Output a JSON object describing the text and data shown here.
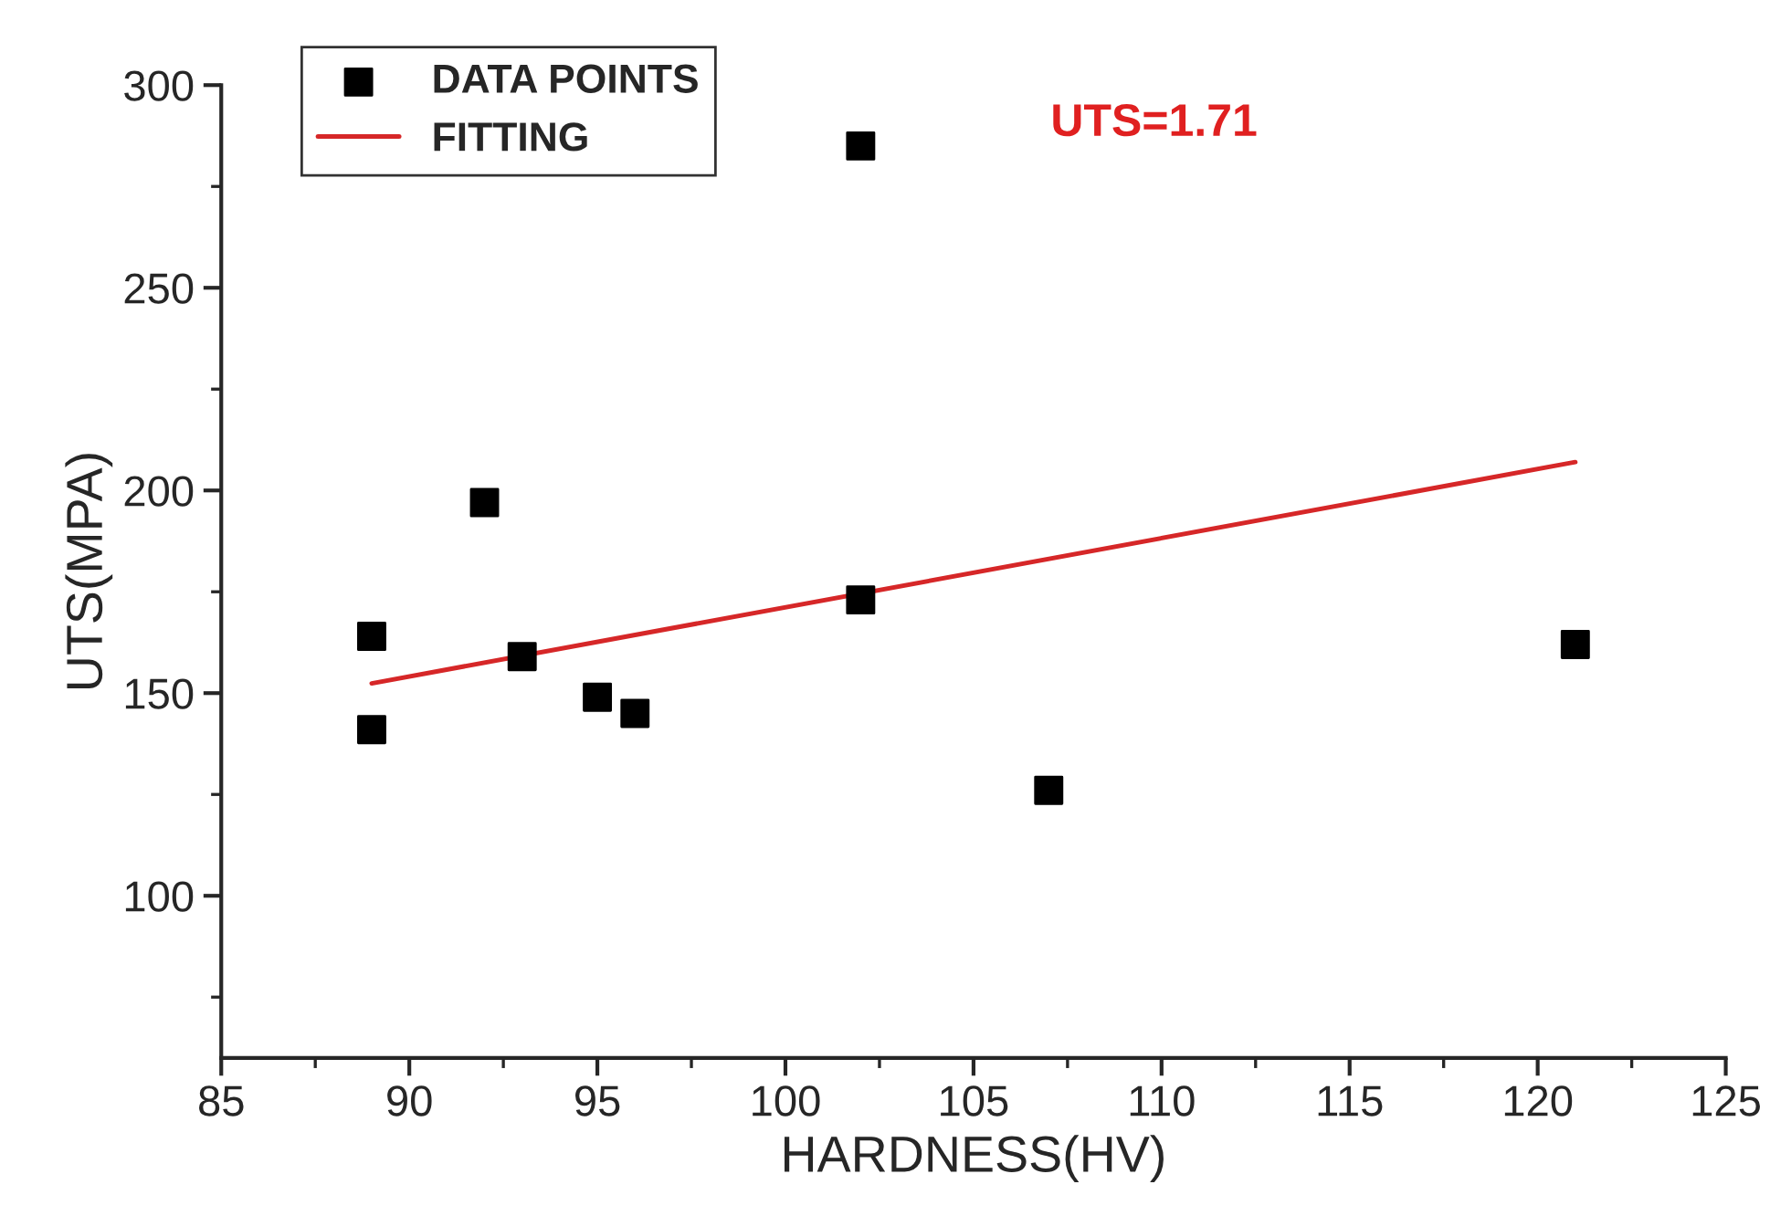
{
  "chart_data": {
    "type": "scatter",
    "xlabel": "HARDNESS(HV)",
    "ylabel": "UTS(MPA)",
    "xlim": [
      85,
      125
    ],
    "xticks": [
      85,
      90,
      95,
      100,
      105,
      110,
      115,
      120,
      125
    ],
    "ylim": [
      60,
      300
    ],
    "yticks": [
      100,
      150,
      200,
      250,
      300
    ],
    "series": [
      {
        "name": "DATA POINTS",
        "color": "#000000",
        "marker": "square",
        "x": [
          89,
          89,
          92,
          93,
          95,
          96,
          102,
          102,
          107,
          121
        ],
        "values": [
          141,
          164,
          197,
          159,
          149,
          145,
          285,
          173,
          126,
          162
        ]
      },
      {
        "name": "FITTING",
        "type": "line",
        "color": "#d62728",
        "marker": "none",
        "line_style": "solid",
        "x": [
          89,
          121
        ],
        "values": [
          152.4,
          207
        ]
      }
    ],
    "annotations": [
      "UTS=1.71"
    ],
    "legend": "top left",
    "grid": false
  }
}
